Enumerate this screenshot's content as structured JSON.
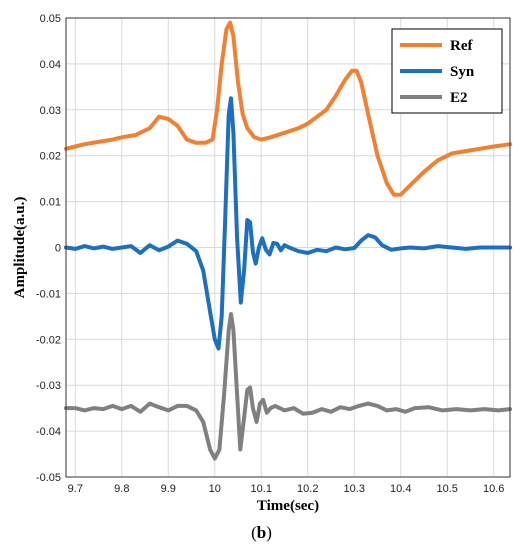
{
  "chart_data": {
    "type": "line",
    "xlabel": "Time(sec)",
    "ylabel": "Amplitude(a.u.)",
    "xlim": [
      9.68,
      10.635
    ],
    "ylim": [
      -0.05,
      0.05
    ],
    "xticks": [
      9.7,
      9.8,
      9.9,
      10,
      10.1,
      10.2,
      10.3,
      10.4,
      10.5,
      10.6
    ],
    "xtick_labels": [
      "9.7",
      "9.8",
      "9.9",
      "10",
      "10.1",
      "10.2",
      "10.3",
      "10.4",
      "10.5",
      "10.6"
    ],
    "yticks": [
      0.05,
      0.04,
      0.03,
      0.02,
      0.01,
      0,
      -0.01,
      -0.02,
      -0.03,
      -0.04,
      -0.05
    ],
    "ytick_labels": [
      "0.05",
      "0.04",
      "0.03",
      "0.02",
      "0.01",
      "0",
      "-0.01",
      "-0.02",
      "-0.03",
      "-0.04",
      "-0.05"
    ],
    "grid": true,
    "legend_position": "top-right",
    "series": [
      {
        "name": "Ref",
        "color": "#F08133",
        "points": [
          [
            9.68,
            0.0215
          ],
          [
            9.7,
            0.022
          ],
          [
            9.72,
            0.0225
          ],
          [
            9.75,
            0.023
          ],
          [
            9.78,
            0.0235
          ],
          [
            9.8,
            0.024
          ],
          [
            9.83,
            0.0245
          ],
          [
            9.86,
            0.026
          ],
          [
            9.88,
            0.0285
          ],
          [
            9.9,
            0.028
          ],
          [
            9.92,
            0.0265
          ],
          [
            9.94,
            0.0235
          ],
          [
            9.96,
            0.0228
          ],
          [
            9.98,
            0.0228
          ],
          [
            9.995,
            0.0235
          ],
          [
            10.005,
            0.03
          ],
          [
            10.015,
            0.04
          ],
          [
            10.025,
            0.0475
          ],
          [
            10.033,
            0.049
          ],
          [
            10.04,
            0.046
          ],
          [
            10.05,
            0.036
          ],
          [
            10.06,
            0.029
          ],
          [
            10.07,
            0.026
          ],
          [
            10.085,
            0.024
          ],
          [
            10.1,
            0.0235
          ],
          [
            10.12,
            0.024
          ],
          [
            10.15,
            0.025
          ],
          [
            10.18,
            0.026
          ],
          [
            10.2,
            0.027
          ],
          [
            10.22,
            0.0285
          ],
          [
            10.24,
            0.03
          ],
          [
            10.26,
            0.033
          ],
          [
            10.28,
            0.0365
          ],
          [
            10.295,
            0.0385
          ],
          [
            10.305,
            0.0385
          ],
          [
            10.315,
            0.036
          ],
          [
            10.33,
            0.029
          ],
          [
            10.35,
            0.02
          ],
          [
            10.37,
            0.014
          ],
          [
            10.385,
            0.0115
          ],
          [
            10.4,
            0.0115
          ],
          [
            10.42,
            0.0135
          ],
          [
            10.45,
            0.0165
          ],
          [
            10.48,
            0.019
          ],
          [
            10.51,
            0.0205
          ],
          [
            10.54,
            0.021
          ],
          [
            10.57,
            0.0215
          ],
          [
            10.6,
            0.022
          ],
          [
            10.635,
            0.0225
          ]
        ]
      },
      {
        "name": "Syn",
        "color": "#1F6FBF",
        "points": [
          [
            9.68,
            0.0
          ],
          [
            9.7,
            -0.0003
          ],
          [
            9.72,
            0.0003
          ],
          [
            9.74,
            -0.0002
          ],
          [
            9.76,
            0.0002
          ],
          [
            9.78,
            -0.0003
          ],
          [
            9.8,
            0.0
          ],
          [
            9.82,
            0.0003
          ],
          [
            9.84,
            -0.0012
          ],
          [
            9.86,
            0.0005
          ],
          [
            9.88,
            -0.0006
          ],
          [
            9.9,
            0.0002
          ],
          [
            9.92,
            0.0015
          ],
          [
            9.94,
            0.0008
          ],
          [
            9.96,
            -0.0008
          ],
          [
            9.975,
            -0.005
          ],
          [
            9.99,
            -0.014
          ],
          [
            10.0,
            -0.02
          ],
          [
            10.008,
            -0.022
          ],
          [
            10.015,
            -0.015
          ],
          [
            10.022,
            0.005
          ],
          [
            10.03,
            0.029
          ],
          [
            10.035,
            0.0325
          ],
          [
            10.04,
            0.025
          ],
          [
            10.048,
            0.002
          ],
          [
            10.056,
            -0.012
          ],
          [
            10.063,
            -0.005
          ],
          [
            10.07,
            0.006
          ],
          [
            10.076,
            0.0055
          ],
          [
            10.082,
            -0.001
          ],
          [
            10.088,
            -0.0035
          ],
          [
            10.095,
            0.0
          ],
          [
            10.102,
            0.002
          ],
          [
            10.11,
            -0.0005
          ],
          [
            10.118,
            -0.0015
          ],
          [
            10.126,
            0.001
          ],
          [
            10.134,
            0.0008
          ],
          [
            10.142,
            -0.0006
          ],
          [
            10.15,
            0.0005
          ],
          [
            10.16,
            0.0
          ],
          [
            10.18,
            -0.0008
          ],
          [
            10.2,
            -0.0012
          ],
          [
            10.22,
            -0.0005
          ],
          [
            10.24,
            -0.0008
          ],
          [
            10.26,
            0.0
          ],
          [
            10.28,
            -0.0004
          ],
          [
            10.3,
            -0.0001
          ],
          [
            10.315,
            0.0015
          ],
          [
            10.33,
            0.0027
          ],
          [
            10.345,
            0.0022
          ],
          [
            10.36,
            0.0005
          ],
          [
            10.38,
            -0.0005
          ],
          [
            10.4,
            -0.0002
          ],
          [
            10.42,
            0.0
          ],
          [
            10.45,
            -0.0002
          ],
          [
            10.48,
            0.0003
          ],
          [
            10.51,
            0.0
          ],
          [
            10.54,
            -0.0003
          ],
          [
            10.57,
            0.0
          ],
          [
            10.6,
            0.0
          ],
          [
            10.635,
            0.0
          ]
        ]
      },
      {
        "name": "E2",
        "color": "#808080",
        "points": [
          [
            9.68,
            -0.035
          ],
          [
            9.7,
            -0.035
          ],
          [
            9.72,
            -0.0355
          ],
          [
            9.74,
            -0.035
          ],
          [
            9.76,
            -0.0352
          ],
          [
            9.78,
            -0.0345
          ],
          [
            9.8,
            -0.0352
          ],
          [
            9.82,
            -0.0345
          ],
          [
            9.84,
            -0.0358
          ],
          [
            9.86,
            -0.034
          ],
          [
            9.88,
            -0.0348
          ],
          [
            9.9,
            -0.0355
          ],
          [
            9.92,
            -0.0345
          ],
          [
            9.94,
            -0.0345
          ],
          [
            9.96,
            -0.0355
          ],
          [
            9.975,
            -0.038
          ],
          [
            9.99,
            -0.044
          ],
          [
            10.0,
            -0.046
          ],
          [
            10.01,
            -0.044
          ],
          [
            10.02,
            -0.032
          ],
          [
            10.03,
            -0.018
          ],
          [
            10.035,
            -0.0145
          ],
          [
            10.04,
            -0.018
          ],
          [
            10.048,
            -0.032
          ],
          [
            10.055,
            -0.044
          ],
          [
            10.062,
            -0.038
          ],
          [
            10.07,
            -0.031
          ],
          [
            10.076,
            -0.0305
          ],
          [
            10.082,
            -0.035
          ],
          [
            10.09,
            -0.038
          ],
          [
            10.097,
            -0.034
          ],
          [
            10.104,
            -0.0332
          ],
          [
            10.112,
            -0.036
          ],
          [
            10.12,
            -0.035
          ],
          [
            10.13,
            -0.0345
          ],
          [
            10.15,
            -0.0355
          ],
          [
            10.17,
            -0.035
          ],
          [
            10.19,
            -0.0362
          ],
          [
            10.21,
            -0.036
          ],
          [
            10.23,
            -0.0352
          ],
          [
            10.25,
            -0.0358
          ],
          [
            10.27,
            -0.0348
          ],
          [
            10.29,
            -0.0352
          ],
          [
            10.31,
            -0.0345
          ],
          [
            10.33,
            -0.034
          ],
          [
            10.35,
            -0.0345
          ],
          [
            10.37,
            -0.0355
          ],
          [
            10.39,
            -0.0352
          ],
          [
            10.41,
            -0.0358
          ],
          [
            10.43,
            -0.035
          ],
          [
            10.46,
            -0.0348
          ],
          [
            10.49,
            -0.0355
          ],
          [
            10.52,
            -0.0352
          ],
          [
            10.55,
            -0.0355
          ],
          [
            10.58,
            -0.0352
          ],
          [
            10.61,
            -0.0355
          ],
          [
            10.635,
            -0.0352
          ]
        ]
      }
    ]
  },
  "caption": {
    "open": "(",
    "letter": "b",
    "close": ")"
  }
}
